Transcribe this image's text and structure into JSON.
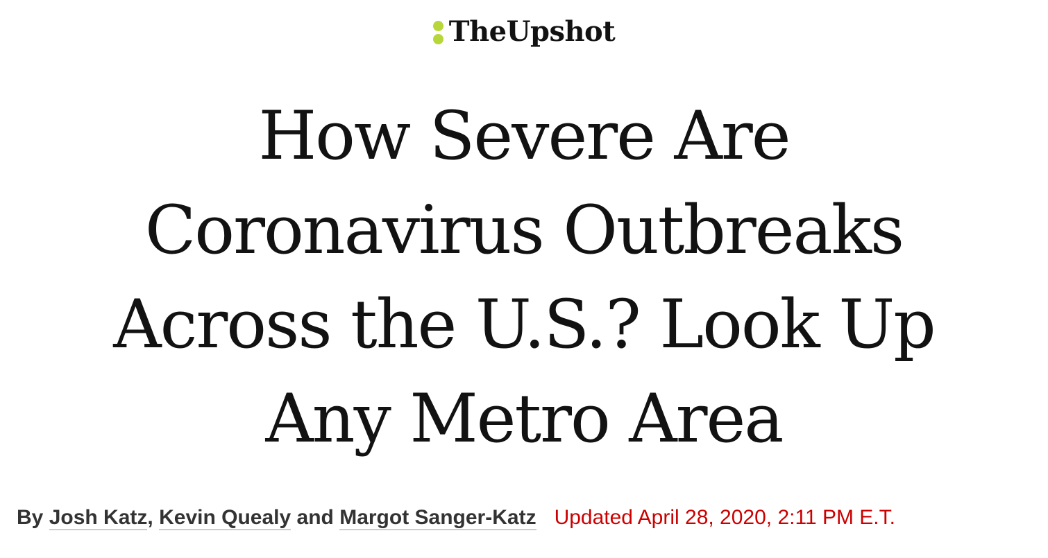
{
  "masthead": {
    "logo_icon": "two-dot-icon",
    "logo_color": "#b7d639",
    "brand": "TheUpshot"
  },
  "headline": {
    "lines": [
      "How Severe Are",
      "Coronavirus Outbreaks",
      "Across the U.S.? Look Up",
      "Any Metro Area"
    ]
  },
  "byline": {
    "prefix": "By",
    "authors": [
      "Josh Katz",
      "Kevin Quealy",
      "Margot Sanger-Katz"
    ],
    "sep_comma": ",",
    "sep_and": "and",
    "timestamp": "Updated April 28, 2020, 2:11 PM E.T.",
    "timestamp_color": "#cc0000"
  }
}
